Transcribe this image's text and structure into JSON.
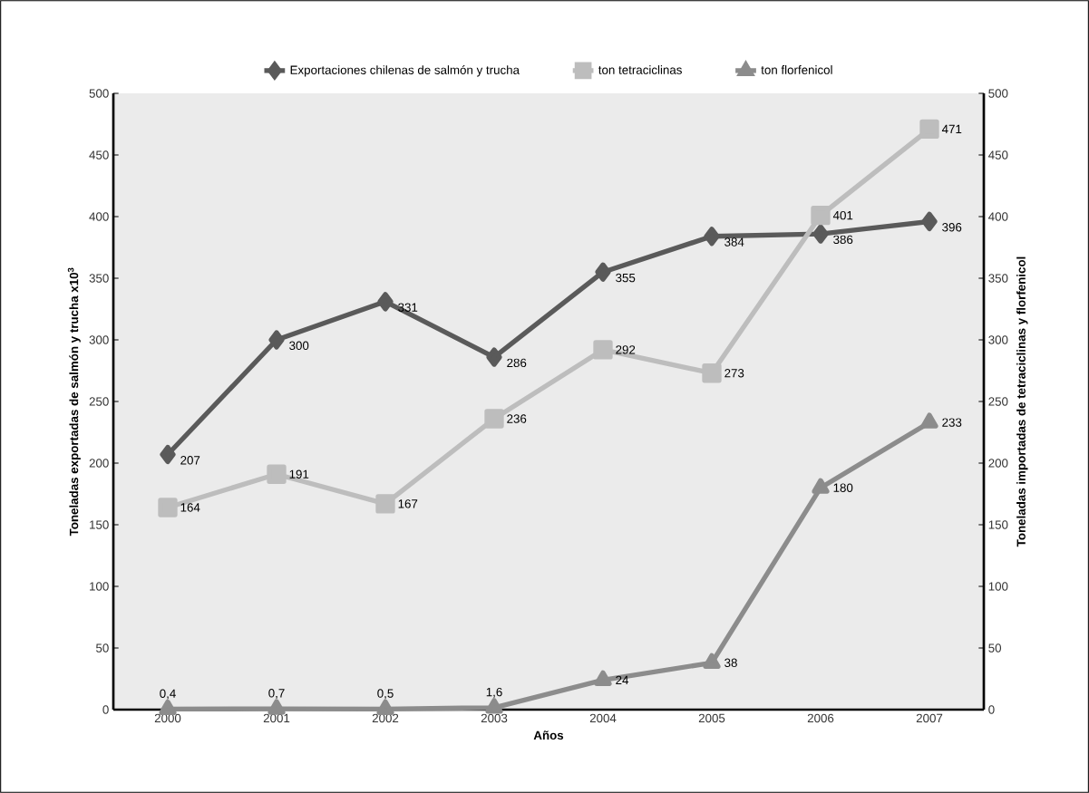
{
  "chart_data": {
    "type": "line",
    "xlabel": "Años",
    "ylabel": "Toneladas exportadas de salmón y trucha x10$^{3}$",
    "y2label": "Toneladas importadas de tetraciclinas y florfenicol",
    "categories": [
      "2000",
      "2001",
      "2002",
      "2003",
      "2004",
      "2005",
      "2006",
      "2007"
    ],
    "series": [
      {
        "name": "Exportaciones chilenas de salmón y trucha",
        "color": "#5a5a5a",
        "marker": "diamond",
        "values": [
          207,
          300,
          331,
          286,
          355,
          384,
          386,
          396
        ],
        "value_labels": [
          "207",
          "300",
          "331",
          "286",
          "355",
          "384",
          "386",
          "396"
        ]
      },
      {
        "name": "ton tetraciclinas",
        "color": "#bdbdbd",
        "marker": "square",
        "axis": "y2",
        "values": [
          164,
          191,
          167,
          236,
          292,
          273,
          401,
          471
        ],
        "value_labels": [
          "164",
          "191",
          "167",
          "236",
          "292",
          "273",
          "401",
          "471"
        ]
      },
      {
        "name": "ton florfenicol",
        "color": "#8c8c8c",
        "marker": "triangle",
        "axis": "y2",
        "values": [
          0.4,
          0.7,
          0.5,
          1.6,
          24,
          38,
          180,
          233
        ],
        "value_labels": [
          "0,4",
          "0,7",
          "0,5",
          "1,6",
          "24",
          "38",
          "180",
          "233"
        ]
      }
    ],
    "ylim": [
      0,
      500
    ],
    "yticks": [
      0,
      50,
      100,
      150,
      200,
      250,
      300,
      350,
      400,
      450,
      500
    ],
    "y2lim": [
      0,
      500
    ],
    "y2ticks": [
      0,
      50,
      100,
      150,
      200,
      250,
      300,
      350,
      400,
      450,
      500
    ],
    "legend": "top",
    "grid": false
  }
}
